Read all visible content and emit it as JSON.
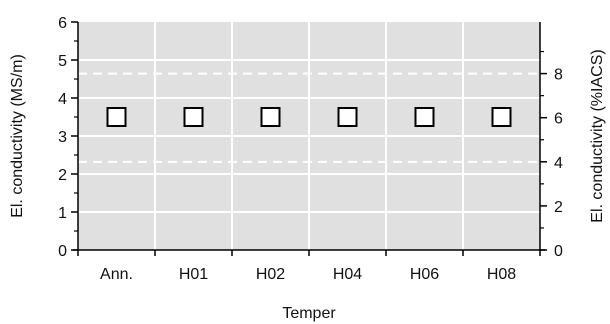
{
  "chart_data": {
    "type": "scatter",
    "title": "",
    "xlabel": "Temper",
    "ylabel": "El. conductivity (MS/m)",
    "y2label": "El. conductivity (%IACS)",
    "categories": [
      "Ann.",
      "H01",
      "H02",
      "H04",
      "H06",
      "H08"
    ],
    "series": [
      {
        "values": [
          3.5,
          3.5,
          3.5,
          3.5,
          3.5,
          3.5
        ],
        "marker": "open-square"
      }
    ],
    "ylim": [
      0,
      6
    ],
    "y2lim": [
      0,
      10.34
    ],
    "yticks": [
      "0",
      "1",
      "2",
      "3",
      "4",
      "5",
      "6"
    ],
    "y2ticks": [
      "0",
      "2",
      "4",
      "6",
      "8"
    ],
    "y2_tick_values": [
      0,
      2,
      4,
      6,
      8
    ],
    "reference_lines_y": [
      2.32,
      4.64
    ],
    "grid": true,
    "colors": {
      "plot_background": "#e0e0e0",
      "grid": "#ffffff",
      "marker_edge": "#000000",
      "marker_fill": "#ffffff",
      "axis": "#000000"
    }
  }
}
